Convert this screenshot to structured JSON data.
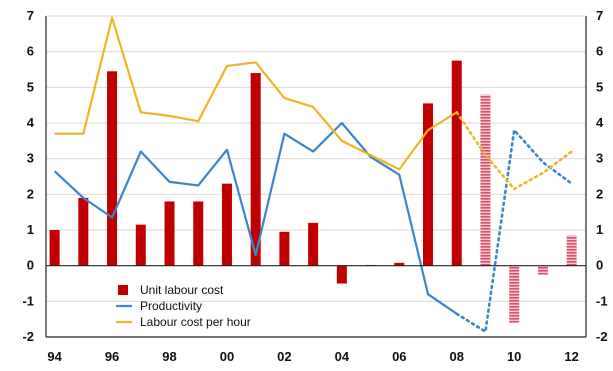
{
  "chart_data": {
    "type": "bar+line",
    "x_tick_labels": [
      "94",
      "96",
      "98",
      "00",
      "02",
      "04",
      "06",
      "08",
      "10",
      "12"
    ],
    "x_tick_values": [
      1994,
      1996,
      1998,
      2000,
      2002,
      2004,
      2006,
      2008,
      2010,
      2012
    ],
    "xlim": [
      1993.7,
      2012.5
    ],
    "ylim": [
      -2,
      7
    ],
    "y_ticks": [
      -2,
      -1,
      0,
      1,
      2,
      3,
      4,
      5,
      6,
      7
    ],
    "y_tick_labels_left": [
      "-2",
      "-1",
      "0",
      "1",
      "2",
      "3",
      "4",
      "5",
      "6",
      "7"
    ],
    "y_tick_labels_right": [
      "-2",
      "-1",
      "0",
      "1",
      "2",
      "3",
      "4",
      "5",
      "6",
      "7"
    ],
    "grid": "horizontal",
    "legend_position": "bottom-left",
    "legend": [
      "Unit labour cost",
      "Productivity",
      "Labour cost per hour"
    ],
    "series": [
      {
        "name": "Unit labour cost",
        "type": "bar",
        "color": "#c00000",
        "x": [
          1994,
          1995,
          1996,
          1997,
          1998,
          1999,
          2000,
          2001,
          2002,
          2003,
          2004,
          2005,
          2006,
          2007,
          2008
        ],
        "values": [
          1.0,
          1.9,
          5.45,
          1.15,
          1.8,
          1.8,
          2.3,
          5.4,
          0.95,
          1.2,
          -0.5,
          0.02,
          0.08,
          4.55,
          5.75
        ],
        "forecast_x": [
          2009,
          2010,
          2011,
          2012
        ],
        "forecast_values": [
          4.8,
          -1.6,
          -0.25,
          0.85
        ],
        "forecast_color": "#d9506a"
      },
      {
        "name": "Productivity",
        "type": "line",
        "color": "#3a86c8",
        "x": [
          1994,
          1995,
          1996,
          1997,
          1998,
          1999,
          2000,
          2001,
          2002,
          2003,
          2004,
          2005,
          2006,
          2007,
          2008
        ],
        "values": [
          2.65,
          1.9,
          1.35,
          3.2,
          2.35,
          2.25,
          3.25,
          0.3,
          3.7,
          3.2,
          4.0,
          3.05,
          2.55,
          -0.8,
          -1.35
        ],
        "forecast_x": [
          2008,
          2009,
          2010,
          2011,
          2012
        ],
        "forecast_values": [
          -1.35,
          -1.85,
          3.8,
          2.9,
          2.3
        ]
      },
      {
        "name": "Labour cost per hour",
        "type": "line",
        "color": "#f0b429",
        "x": [
          1994,
          1995,
          1996,
          1997,
          1998,
          1999,
          2000,
          2001,
          2002,
          2003,
          2004,
          2005,
          2006,
          2007,
          2008
        ],
        "values": [
          3.7,
          3.7,
          6.95,
          4.3,
          4.2,
          4.05,
          5.6,
          5.7,
          4.7,
          4.45,
          3.5,
          3.1,
          2.7,
          3.8,
          4.3
        ],
        "forecast_x": [
          2008,
          2009,
          2010,
          2011,
          2012
        ],
        "forecast_values": [
          4.3,
          3.1,
          2.15,
          2.6,
          3.2
        ]
      }
    ]
  }
}
